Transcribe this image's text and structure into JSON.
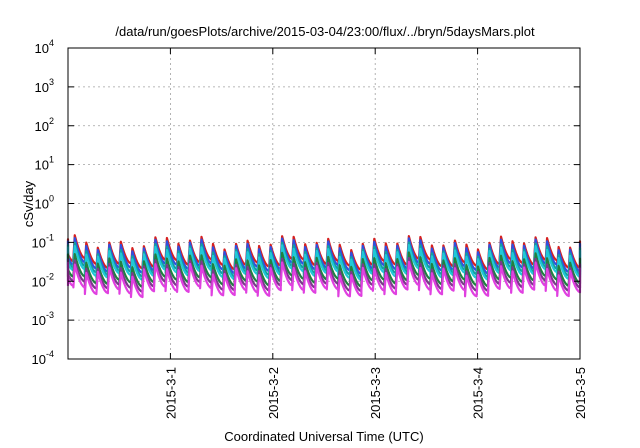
{
  "chart_data": {
    "type": "line",
    "title": "/data/run/goesPlots/archive/2015-03-04/23:00/flux/../bryn/5daysMars.plot",
    "xlabel": "Coordinated Universal Time (UTC)",
    "ylabel": "cSv/day",
    "y_scale": "log",
    "grid": true,
    "xlim": [
      "2015-02-28 00:00",
      "2015-03-05 00:00"
    ],
    "ylim": [
      0.0001,
      10000
    ],
    "x_ticks": [
      "2015-3-1",
      "2015-3-2",
      "2015-3-3",
      "2015-3-4",
      "2015-3-5"
    ],
    "y_ticks": [
      {
        "base": "10",
        "exp": "-4"
      },
      {
        "base": "10",
        "exp": "-3"
      },
      {
        "base": "10",
        "exp": "-2"
      },
      {
        "base": "10",
        "exp": "-1"
      },
      {
        "base": "10",
        "exp": "0"
      },
      {
        "base": "10",
        "exp": "1"
      },
      {
        "base": "10",
        "exp": "2"
      },
      {
        "base": "10",
        "exp": "3"
      },
      {
        "base": "10",
        "exp": "4"
      }
    ],
    "pattern": {
      "cycle_hours": 2.7,
      "peaks_per_day": 8.9,
      "shape": "sawtooth: sharp rise, exponential-like decay"
    },
    "series": [
      {
        "color": "#d62020",
        "peak": 0.1,
        "trough": 0.028
      },
      {
        "color": "#3050e0",
        "peak": 0.085,
        "trough": 0.022
      },
      {
        "color": "#10a0a0",
        "peak": 0.065,
        "trough": 0.018
      },
      {
        "color": "#20c8d8",
        "peak": 0.055,
        "trough": 0.015
      },
      {
        "color": "#208040",
        "peak": 0.035,
        "trough": 0.01
      },
      {
        "color": "#7a3a8a",
        "peak": 0.025,
        "trough": 0.0075
      },
      {
        "color": "#e040e0",
        "peak": 0.02,
        "trough": 0.0055
      }
    ]
  }
}
